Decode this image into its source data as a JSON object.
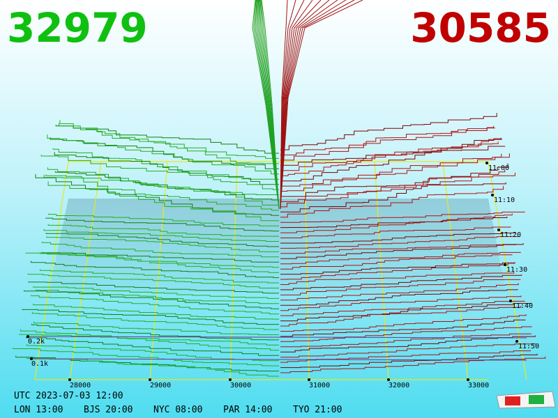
{
  "header": {
    "bid_total": "32979",
    "ask_total": "30585"
  },
  "price_axis": {
    "ticks": [
      "28000",
      "29000",
      "30000",
      "31000",
      "32000",
      "33000"
    ]
  },
  "volume_axis": {
    "ticks": [
      "0.2k",
      "0.1k"
    ]
  },
  "time_axis": {
    "ticks": [
      "11:00",
      "11:10",
      "11:20",
      "11:30",
      "11:40",
      "11:50"
    ]
  },
  "footer": {
    "utc": "UTC 2023-07-03 12:00",
    "cities": [
      "LON 13:00",
      "BJS 20:00",
      "NYC 08:00",
      "PAR 14:00",
      "TYO 21:00"
    ]
  }
}
